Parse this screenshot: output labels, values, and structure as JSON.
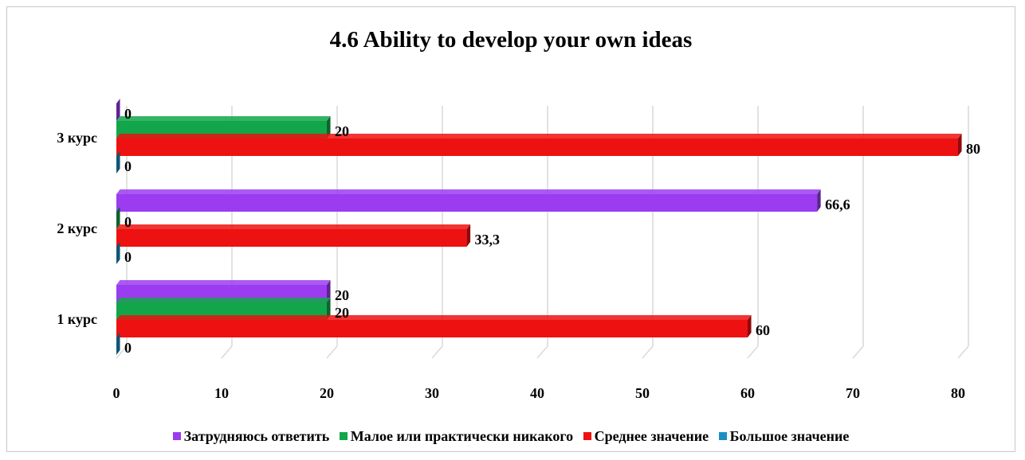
{
  "chart_data": {
    "type": "bar",
    "orientation": "horizontal",
    "title": "4.6 Ability to develop your own ideas",
    "categories": [
      "1 курс",
      "2 курс",
      "3 курс"
    ],
    "series": [
      {
        "name": "Затрудняюсь ответить",
        "color": "#9b3cf0",
        "values": [
          20,
          66.6,
          0
        ],
        "labels": [
          "20",
          "66,6",
          "0"
        ]
      },
      {
        "name": "Малое или практически никакого",
        "color": "#12a64a",
        "values": [
          20,
          0,
          20
        ],
        "labels": [
          "20",
          "0",
          "20"
        ]
      },
      {
        "name": "Среднее значение",
        "color": "#ee1111",
        "values": [
          60,
          33.3,
          80
        ],
        "labels": [
          "60",
          "33,3",
          "80"
        ]
      },
      {
        "name": "Большое значение",
        "color": "#1a8fc4",
        "values": [
          0,
          0,
          0
        ],
        "labels": [
          "0",
          "0",
          "0"
        ]
      }
    ],
    "x_ticks": [
      "0",
      "10",
      "20",
      "30",
      "40",
      "50",
      "60",
      "70",
      "80"
    ],
    "xlim": [
      0,
      80
    ],
    "grid": true,
    "legend_position": "bottom"
  }
}
